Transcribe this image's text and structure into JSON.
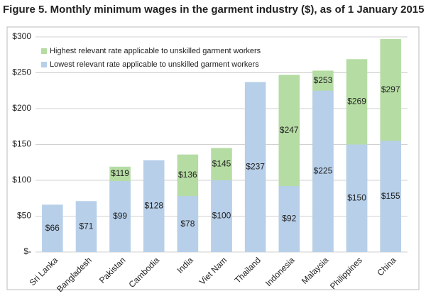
{
  "chart_data": {
    "type": "overlapping-bar",
    "title": "Figure 5. Monthly minimum wages in the garment industry ($), as of 1 January 2015",
    "categories": [
      "Sri Lanka",
      "Bangladesh",
      "Pakistan",
      "Cambodia",
      "India",
      "Viet Nam",
      "Thailand",
      "Indonesia",
      "Malaysia",
      "Philippines",
      "China"
    ],
    "series": [
      {
        "name": "Highest relevant rate applicable to unskilled garment workers",
        "color": "#b5dca3",
        "values": [
          null,
          null,
          119,
          null,
          136,
          145,
          null,
          247,
          253,
          269,
          297
        ],
        "value_labels": [
          null,
          null,
          "$119",
          null,
          "$136",
          "$145",
          null,
          "$247",
          "$253",
          "$269",
          "$297"
        ]
      },
      {
        "name": "Lowest relevant rate applicable to unskilled garment workers",
        "color": "#b7cfe9",
        "values": [
          66,
          71,
          99,
          128,
          78,
          100,
          237,
          92,
          225,
          150,
          155
        ],
        "value_labels": [
          "$66",
          "$71",
          "$99",
          "$128",
          "$78",
          "$100",
          "$237",
          "$92",
          "$225",
          "$150",
          "$155"
        ]
      }
    ],
    "ylim": [
      0,
      300
    ],
    "yticks": [
      {
        "value": 0,
        "label": "$-"
      },
      {
        "value": 50,
        "label": "$50"
      },
      {
        "value": 100,
        "label": "$100"
      },
      {
        "value": 150,
        "label": "$150"
      },
      {
        "value": 200,
        "label": "$200"
      },
      {
        "value": 250,
        "label": "$250"
      },
      {
        "value": 300,
        "label": "$300"
      }
    ],
    "grid": true,
    "legend": "top-left"
  }
}
